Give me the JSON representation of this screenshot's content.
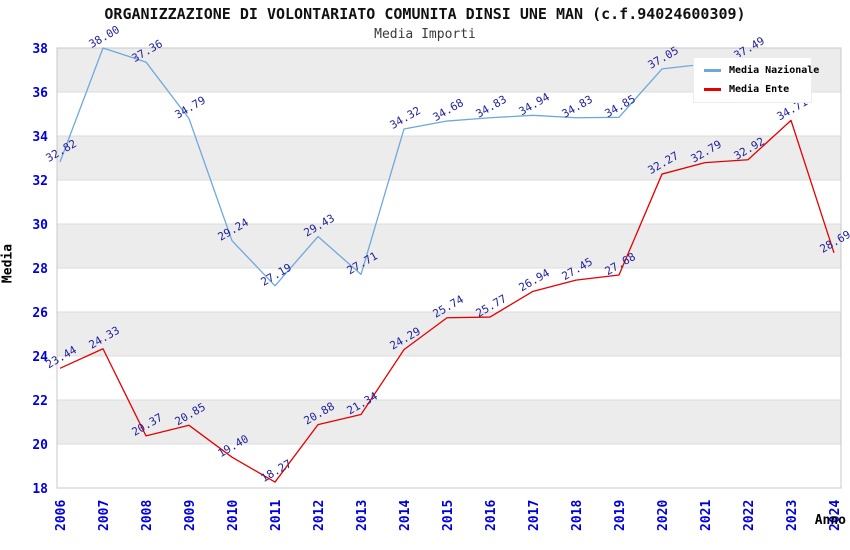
{
  "chart_data": {
    "type": "line",
    "title": "ORGANIZZAZIONE DI VOLONTARIATO COMUNITA DINSI UNE MAN (c.f.94024600309)",
    "subtitle": "Media Importi",
    "xlabel": "Anno",
    "ylabel": "Media",
    "x": [
      "2006",
      "2007",
      "2008",
      "2009",
      "2010",
      "2011",
      "2012",
      "2013",
      "2014",
      "2015",
      "2016",
      "2017",
      "2018",
      "2019",
      "2020",
      "2021",
      "2022",
      "2023",
      "2024"
    ],
    "ylim": [
      18,
      38
    ],
    "ytick_step": 2,
    "grid": "alternating-horizontal-bands",
    "band_color": "#ececec",
    "gridline_color": "#dcdcdc",
    "border_color": "#c9c9c9",
    "tick_color": "#0000dd",
    "label_color": "#1f1f9c",
    "legend_position": "top-right",
    "series": [
      {
        "name": "Media Nazionale",
        "color": "#6fa8dc",
        "values": [
          32.82,
          38.0,
          37.36,
          34.79,
          29.24,
          27.19,
          29.43,
          27.71,
          34.32,
          34.68,
          34.83,
          34.94,
          34.83,
          34.85,
          37.05,
          null,
          37.49,
          null,
          null
        ],
        "labels": [
          "32.82",
          "38.00",
          "37.36",
          "34.79",
          "29.24",
          "27.19",
          "29.43",
          "27.71",
          "34.32",
          "34.68",
          "34.83",
          "34.94",
          "34.83",
          "34.85",
          "37.05",
          null,
          "37.49",
          null,
          null
        ]
      },
      {
        "name": "Media Ente",
        "color": "#e60000",
        "values": [
          23.44,
          24.33,
          20.37,
          20.85,
          19.4,
          18.27,
          20.88,
          21.34,
          24.29,
          25.74,
          25.77,
          26.94,
          27.45,
          27.68,
          32.27,
          32.79,
          32.92,
          34.71,
          28.69
        ],
        "labels": [
          "23.44",
          "24.33",
          "20.37",
          "20.85",
          "19.40",
          "18.27",
          "20.88",
          "21.34",
          "24.29",
          "25.74",
          "25.77",
          "26.94",
          "27.45",
          "27.68",
          "32.27",
          "32.79",
          "32.92",
          "34.71",
          "28.69"
        ]
      }
    ]
  }
}
